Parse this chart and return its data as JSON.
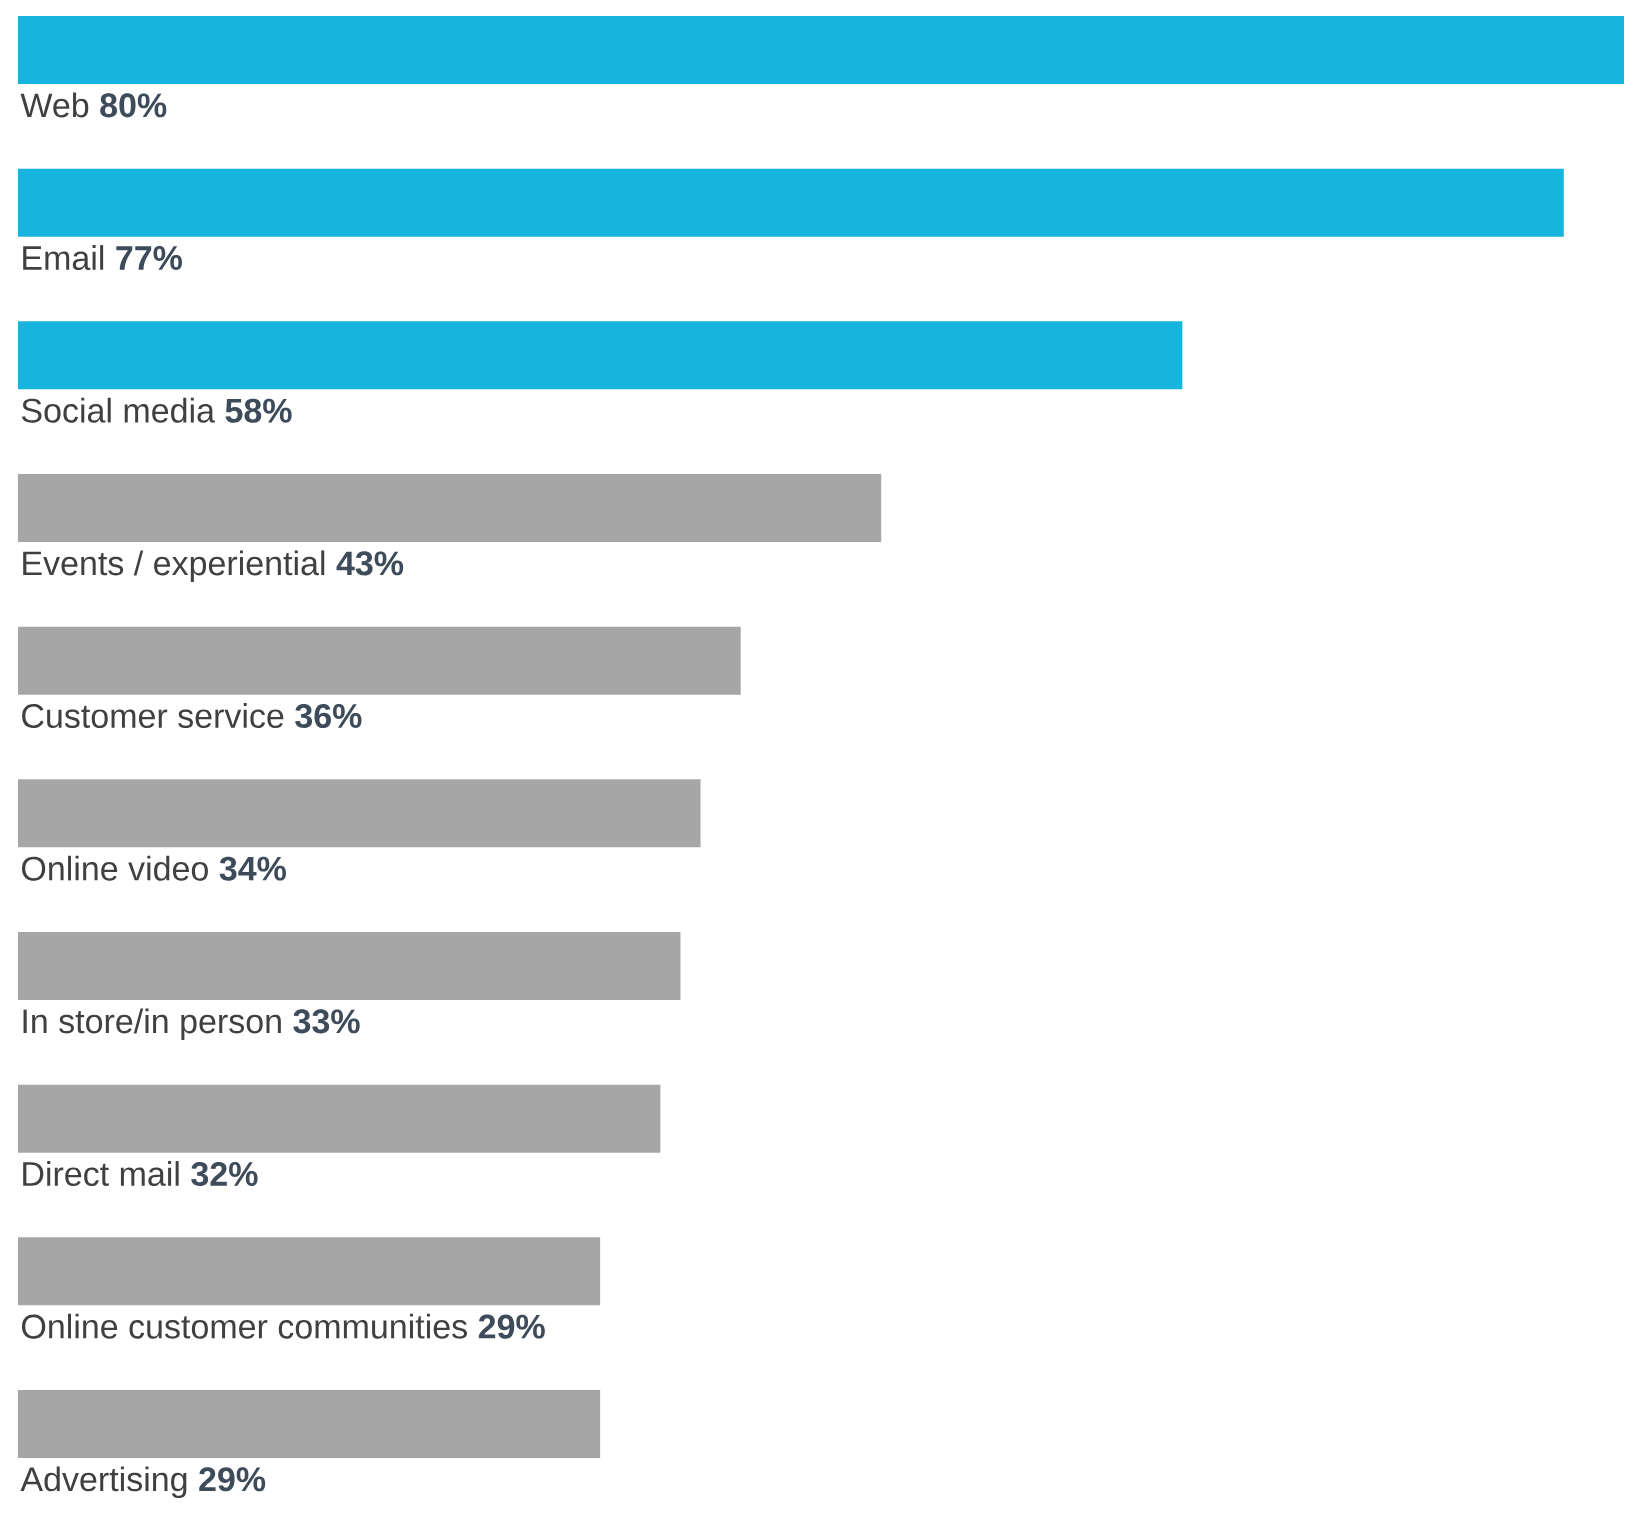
{
  "chart_data": {
    "type": "bar",
    "orientation": "horizontal",
    "categories": [
      "Web",
      "Email",
      "Social media",
      "Events / experiential",
      "Customer service",
      "Online video",
      "In store/in person",
      "Direct mail",
      "Online customer communities",
      "Advertising"
    ],
    "values": [
      80,
      77,
      58,
      43,
      36,
      34,
      33,
      32,
      29,
      29
    ],
    "value_labels": [
      "80%",
      "77%",
      "58%",
      "43%",
      "36%",
      "34%",
      "33%",
      "32%",
      "29%",
      "29%"
    ],
    "colors": [
      "#15b5e0",
      "#15b5e0",
      "#15b5e0",
      "#a6a6a6",
      "#a6a6a6",
      "#a6a6a6",
      "#a6a6a6",
      "#a6a6a6",
      "#a6a6a6",
      "#a6a6a6"
    ]
  }
}
